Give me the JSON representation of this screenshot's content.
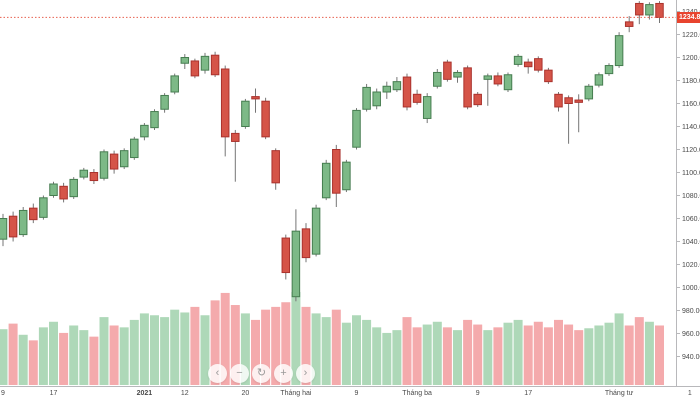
{
  "chart_data": {
    "type": "candlestick_with_volume",
    "title": "",
    "last_price": 1234.85,
    "last_price_label": "1234.85",
    "price_axis": {
      "ticks": [
        1240,
        1220,
        1200,
        1180,
        1160,
        1140,
        1120,
        1100,
        1080,
        1060,
        1040,
        1020,
        1000,
        980,
        960,
        940
      ],
      "format": "two_decimals",
      "range_top": 1250,
      "range_bottom": 915
    },
    "time_axis_labels": [
      {
        "i": 0,
        "label": "9"
      },
      {
        "i": 5,
        "label": "17"
      },
      {
        "i": 14,
        "label": "2021",
        "bold": true
      },
      {
        "i": 18,
        "label": "12"
      },
      {
        "i": 24,
        "label": "20"
      },
      {
        "i": 29,
        "label": "Tháng hai"
      },
      {
        "i": 35,
        "label": "9"
      },
      {
        "i": 41,
        "label": "Tháng ba"
      },
      {
        "i": 47,
        "label": "9"
      },
      {
        "i": 52,
        "label": "17"
      },
      {
        "i": 61,
        "label": "Tháng tư"
      },
      {
        "i": 68,
        "label": "1"
      }
    ],
    "candles_format": [
      "open",
      "high",
      "low",
      "close",
      "relative_volume"
    ],
    "candles": [
      [
        1042,
        1064,
        1036,
        1060,
        0.6
      ],
      [
        1062,
        1066,
        1040,
        1044,
        0.66
      ],
      [
        1046,
        1070,
        1044,
        1067,
        0.54
      ],
      [
        1069,
        1073,
        1056,
        1059,
        0.48
      ],
      [
        1061,
        1080,
        1059,
        1078,
        0.62
      ],
      [
        1080,
        1092,
        1078,
        1090,
        0.68
      ],
      [
        1088,
        1091,
        1074,
        1077,
        0.56
      ],
      [
        1079,
        1096,
        1077,
        1094,
        0.64
      ],
      [
        1096,
        1104,
        1094,
        1102,
        0.59
      ],
      [
        1100,
        1103,
        1090,
        1093,
        0.52
      ],
      [
        1095,
        1120,
        1093,
        1118,
        0.73
      ],
      [
        1116,
        1119,
        1099,
        1103,
        0.64
      ],
      [
        1105,
        1121,
        1103,
        1119,
        0.62
      ],
      [
        1113,
        1131,
        1111,
        1129,
        0.7
      ],
      [
        1131,
        1143,
        1128,
        1141,
        0.77
      ],
      [
        1139,
        1155,
        1137,
        1153,
        0.75
      ],
      [
        1155,
        1169,
        1152,
        1167,
        0.73
      ],
      [
        1170,
        1186,
        1168,
        1184,
        0.81
      ],
      [
        1195,
        1203,
        1190,
        1200,
        0.78
      ],
      [
        1197,
        1199,
        1182,
        1184,
        0.84
      ],
      [
        1189,
        1204,
        1186,
        1201,
        0.75
      ],
      [
        1202,
        1205,
        1183,
        1185,
        0.91
      ],
      [
        1190,
        1193,
        1114,
        1131,
        0.99
      ],
      [
        1134,
        1137,
        1092,
        1127,
        0.86
      ],
      [
        1140,
        1164,
        1138,
        1162,
        0.77
      ],
      [
        1166,
        1173,
        1152,
        1164,
        0.7
      ],
      [
        1162,
        1165,
        1129,
        1131,
        0.81
      ],
      [
        1119,
        1121,
        1085,
        1091,
        0.84
      ],
      [
        1043,
        1046,
        1007,
        1013,
        0.89
      ],
      [
        992,
        1068,
        988,
        1049,
        1.0
      ],
      [
        1051,
        1056,
        1022,
        1026,
        0.84
      ],
      [
        1029,
        1072,
        1027,
        1069,
        0.77
      ],
      [
        1078,
        1111,
        1076,
        1108,
        0.73
      ],
      [
        1120,
        1124,
        1070,
        1082,
        0.81
      ],
      [
        1085,
        1111,
        1083,
        1109,
        0.67
      ],
      [
        1122,
        1156,
        1120,
        1154,
        0.75
      ],
      [
        1155,
        1177,
        1153,
        1174,
        0.7
      ],
      [
        1158,
        1173,
        1155,
        1170,
        0.62
      ],
      [
        1170,
        1179,
        1164,
        1175,
        0.56
      ],
      [
        1172,
        1183,
        1170,
        1179,
        0.59
      ],
      [
        1183,
        1186,
        1154,
        1157,
        0.73
      ],
      [
        1168,
        1172,
        1159,
        1161,
        0.62
      ],
      [
        1147,
        1169,
        1143,
        1166,
        0.65
      ],
      [
        1175,
        1190,
        1173,
        1187,
        0.68
      ],
      [
        1196,
        1198,
        1179,
        1181,
        0.62
      ],
      [
        1183,
        1189,
        1178,
        1187,
        0.59
      ],
      [
        1191,
        1193,
        1155,
        1157,
        0.7
      ],
      [
        1168,
        1170,
        1157,
        1159,
        0.65
      ],
      [
        1181,
        1186,
        1158,
        1184,
        0.59
      ],
      [
        1184,
        1187,
        1175,
        1177,
        0.62
      ],
      [
        1172,
        1187,
        1170,
        1185,
        0.67
      ],
      [
        1194,
        1203,
        1192,
        1201,
        0.7
      ],
      [
        1196,
        1199,
        1186,
        1192,
        0.64
      ],
      [
        1199,
        1201,
        1187,
        1189,
        0.68
      ],
      [
        1189,
        1191,
        1177,
        1179,
        0.62
      ],
      [
        1168,
        1170,
        1153,
        1157,
        0.7
      ],
      [
        1165,
        1167,
        1125,
        1160,
        0.65
      ],
      [
        1163,
        1168,
        1135,
        1161,
        0.59
      ],
      [
        1164,
        1177,
        1162,
        1175,
        0.61
      ],
      [
        1176,
        1187,
        1174,
        1185,
        0.64
      ],
      [
        1186,
        1195,
        1184,
        1193,
        0.67
      ],
      [
        1193,
        1222,
        1191,
        1219,
        0.77
      ],
      [
        1231,
        1236,
        1222,
        1227,
        0.64
      ],
      [
        1247,
        1249,
        1229,
        1237,
        0.73
      ],
      [
        1237,
        1248,
        1233,
        1246,
        0.68
      ],
      [
        1247,
        1249,
        1230,
        1234.85,
        0.64
      ]
    ],
    "colors": {
      "up": "#7db987",
      "up_border": "#467d50",
      "down": "#d55448",
      "down_border": "#aa322d",
      "wick": "#757575",
      "vol_up": "#aed8b8",
      "vol_down": "#f4aaac",
      "price_line": "#e8604f",
      "price_label_bg": "#e8442e",
      "axis": "#b8b8bb",
      "text": "#4a4a4a"
    },
    "legend_position": "none",
    "grid": false
  },
  "nav_buttons": [
    {
      "name": "pan-left",
      "glyph": "‹"
    },
    {
      "name": "zoom-out",
      "glyph": "−"
    },
    {
      "name": "reset-view",
      "glyph": "↻"
    },
    {
      "name": "zoom-in",
      "glyph": "+"
    },
    {
      "name": "pan-right",
      "glyph": "›"
    }
  ]
}
